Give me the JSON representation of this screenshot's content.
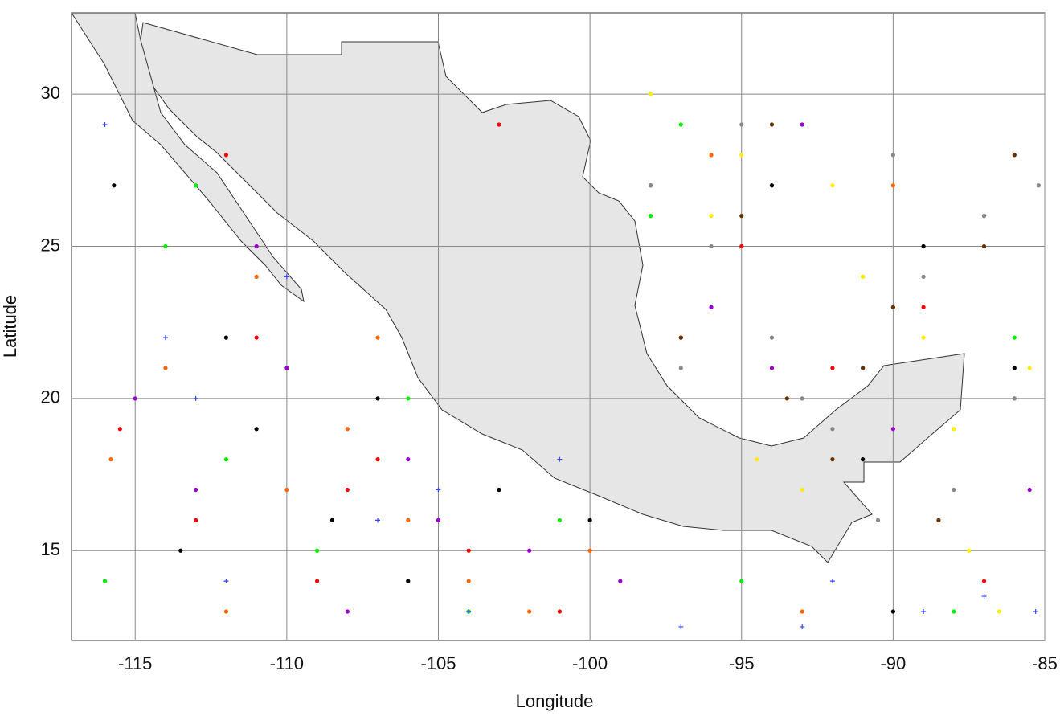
{
  "chart_data": {
    "type": "scatter",
    "x_label": "Longitude",
    "y_label": "Latitude",
    "xlim": [
      -117.1,
      -85
    ],
    "ylim": [
      12.05,
      32.67
    ],
    "xticks": [
      -115,
      -110,
      -105,
      -100,
      -95,
      -90,
      -85
    ],
    "yticks": [
      15,
      20,
      25,
      30
    ],
    "grid": true,
    "series": [
      {
        "color": "#ff0000",
        "marker": "dot",
        "x": [
          -115.5,
          -113,
          -111,
          -109,
          -107,
          -104,
          -101,
          -98,
          -95,
          -92,
          -89,
          -87,
          -112,
          -108,
          -103
        ],
        "y": [
          19,
          16,
          22,
          14,
          18,
          15,
          13,
          27,
          25,
          21,
          23,
          14,
          28,
          17,
          29
        ]
      },
      {
        "color": "#ff6600",
        "marker": "dot",
        "x": [
          -115.8,
          -114,
          -112,
          -110,
          -108,
          -106,
          -104,
          -102,
          -100,
          -96,
          -93,
          -90,
          -86,
          -111,
          -107
        ],
        "y": [
          18,
          21,
          13,
          17,
          19,
          16,
          14,
          13,
          15,
          28,
          13,
          27,
          20,
          24,
          22
        ]
      },
      {
        "color": "#00ee00",
        "marker": "dot",
        "x": [
          -116,
          -114,
          -112,
          -109,
          -106,
          -103,
          -101,
          -98,
          -95,
          -91,
          -88,
          -86,
          -113,
          -104,
          -97
        ],
        "y": [
          14,
          25,
          18,
          15,
          20,
          17,
          16,
          26,
          14,
          24,
          13,
          22,
          27,
          13,
          29
        ]
      },
      {
        "color": "#9900cc",
        "marker": "dot",
        "x": [
          -115,
          -113,
          -110,
          -108,
          -105,
          -102,
          -99,
          -96,
          -93,
          -90,
          -87,
          -85.5,
          -111,
          -106,
          -94
        ],
        "y": [
          20,
          17,
          21,
          13,
          16,
          15,
          14,
          23,
          29,
          19,
          26,
          17,
          25,
          18,
          21
        ]
      },
      {
        "color": "#000000",
        "marker": "dot",
        "x": [
          -115.7,
          -113.5,
          -111,
          -108.5,
          -106,
          -103,
          -100,
          -97,
          -94,
          -91,
          -89,
          -86,
          -112,
          -107,
          -90
        ],
        "y": [
          27,
          15,
          19,
          16,
          14,
          17,
          16,
          22,
          27,
          18,
          25,
          21,
          22,
          20,
          13
        ]
      },
      {
        "color": "#3344ff",
        "marker": "plus",
        "x": [
          -116,
          -114,
          -112,
          -110,
          -107,
          -104,
          -101,
          -97,
          -93,
          -89,
          -87,
          -85.3,
          -113,
          -105,
          -92
        ],
        "y": [
          29,
          22,
          14,
          24,
          16,
          13,
          18,
          12.5,
          12.5,
          13,
          13.5,
          13,
          20,
          17,
          14
        ]
      },
      {
        "color": "#888888",
        "marker": "dot",
        "x": [
          -98,
          -96,
          -94,
          -93,
          -92,
          -91,
          -90,
          -89,
          -88,
          -87,
          -86,
          -85.2,
          -97,
          -95,
          -90.5
        ],
        "y": [
          27,
          25,
          22,
          20,
          19,
          21,
          28,
          24,
          17,
          26,
          20,
          27,
          21,
          29,
          16
        ]
      },
      {
        "color": "#ffee00",
        "marker": "dot",
        "x": [
          -98,
          -96,
          -94.5,
          -93,
          -91,
          -89,
          -88,
          -87.5,
          -86.5,
          -85.5,
          -95,
          -92
        ],
        "y": [
          30,
          26,
          18,
          17,
          24,
          22,
          19,
          15,
          13,
          21,
          28,
          27
        ]
      },
      {
        "color": "#663300",
        "marker": "dot",
        "x": [
          -97,
          -95,
          -93.5,
          -92,
          -90,
          -88.5,
          -87,
          -86,
          -94,
          -91
        ],
        "y": [
          22,
          26,
          20,
          18,
          23,
          16,
          25,
          28,
          29,
          21
        ]
      }
    ]
  }
}
